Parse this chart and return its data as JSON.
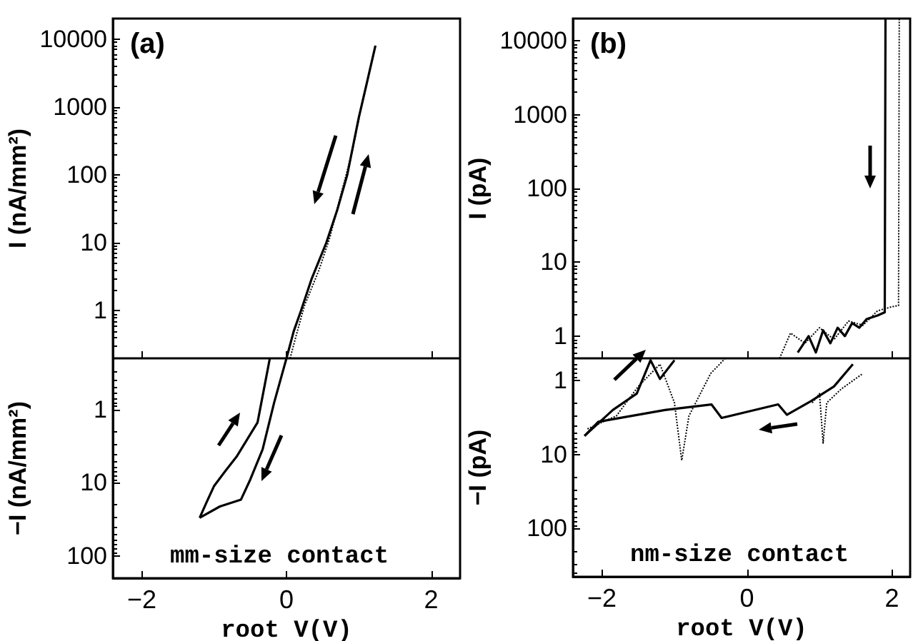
{
  "chart_data": [
    {
      "type": "line",
      "ylabel": "I (nA/mm²)",
      "annotations": [
        "(a)"
      ],
      "xlim": [
        -2.4,
        2.4
      ],
      "xticks": [
        -2,
        0,
        2
      ],
      "ylim": [
        0.2,
        20000
      ],
      "yticks": [
        1,
        10,
        100,
        1000,
        10000
      ],
      "log": "y",
      "tick_labels": "y",
      "grid": false,
      "marker": "none",
      "series": [
        {
          "color": "#000000",
          "line_style": "solid",
          "x": [
            0.0,
            0.1,
            0.2,
            0.35,
            0.55,
            0.7,
            0.84,
            1.0,
            1.1,
            1.23
          ],
          "values": [
            0.2,
            0.5,
            1,
            3,
            10,
            30,
            100,
            700,
            2000,
            8000
          ]
        },
        {
          "color": "#000000",
          "line_style": "dotted",
          "x": [
            0.05,
            0.15,
            0.25,
            0.45,
            0.6,
            0.75,
            0.9,
            1.05,
            1.23
          ],
          "values": [
            0.2,
            0.5,
            1.2,
            4,
            12,
            50,
            200,
            1200,
            8000
          ]
        }
      ]
    },
    {
      "type": "line",
      "ylabel": "−I (nA/mm²)",
      "xlabel": "root V(V)",
      "annotations": [
        "mm-size contact"
      ],
      "xlim": [
        -2.4,
        2.4
      ],
      "xticks": [
        -2,
        0,
        2
      ],
      "ylim": [
        200,
        0.2
      ],
      "yticks": [
        1,
        10,
        100
      ],
      "log": "y",
      "grid": false,
      "marker": "none",
      "series": [
        {
          "color": "#000000",
          "line_style": "solid",
          "x": [
            -0.23,
            -0.4,
            -0.69,
            -0.85,
            -1.0,
            -1.1,
            -1.2
          ],
          "values": [
            0.2,
            1.5,
            4.4,
            7,
            11,
            18,
            30
          ]
        },
        {
          "color": "#000000",
          "line_style": "solid",
          "x": [
            0.0,
            -0.17,
            -0.33,
            -0.5,
            -0.63,
            -0.92,
            -1.2
          ],
          "values": [
            0.2,
            0.8,
            3.5,
            9,
            17,
            21,
            30
          ]
        }
      ]
    },
    {
      "type": "line",
      "ylabel": "I (pA)",
      "annotations": [
        "(b)"
      ],
      "xlim": [
        -2.4,
        2.25
      ],
      "xticks": [
        -2,
        0,
        2
      ],
      "ylim": [
        0.5,
        20000
      ],
      "yticks": [
        1,
        10,
        100,
        1000,
        10000
      ],
      "log": "y",
      "tick_labels": "y",
      "grid": false,
      "marker": "none",
      "series": [
        {
          "color": "#000000",
          "line_style": "solid",
          "x": [
            0.7,
            0.85,
            0.95,
            1.05,
            1.15,
            1.25,
            1.35,
            1.45,
            1.55,
            1.65,
            1.8,
            1.9,
            1.91
          ],
          "values": [
            0.6,
            1.0,
            0.6,
            1.2,
            0.8,
            1.3,
            1.0,
            1.5,
            1.3,
            1.7,
            1.9,
            2.1,
            20000
          ]
        },
        {
          "color": "#000000",
          "line_style": "dotted",
          "x": [
            0.45,
            0.6,
            0.8,
            1.0,
            1.2,
            1.4,
            1.6,
            1.8,
            2.0,
            2.09,
            2.1
          ],
          "values": [
            0.5,
            1.1,
            0.8,
            1.3,
            0.9,
            1.6,
            1.4,
            2.2,
            2.5,
            2.6,
            20000
          ]
        }
      ]
    },
    {
      "type": "line",
      "ylabel": "−I (pA)",
      "xlabel": "root V(V)",
      "annotations": [
        "nm-size contact"
      ],
      "xlim": [
        -2.4,
        2.25
      ],
      "xticks": [
        -2,
        0,
        2
      ],
      "ylim": [
        450,
        0.5
      ],
      "yticks": [
        1,
        10,
        100
      ],
      "log": "y",
      "grid": false,
      "marker": "none",
      "series": [
        {
          "color": "#000000",
          "line_style": "solid",
          "x": [
            -2.24,
            -2.05,
            -1.13,
            -0.49,
            -0.35,
            0.43,
            0.55,
            0.88,
            1.2,
            1.46
          ],
          "values": [
            5.6,
            3.6,
            2.5,
            2.1,
            3.2,
            2.1,
            2.9,
            1.9,
            1.2,
            0.6
          ]
        },
        {
          "color": "#000000",
          "line_style": "solid",
          "x": [
            -2.24,
            -1.85,
            -1.52,
            -1.33,
            -1.2,
            -1.0
          ],
          "values": [
            5.6,
            2.5,
            1.5,
            0.53,
            0.95,
            0.53
          ]
        },
        {
          "color": "#000000",
          "line_style": "dotted",
          "x": [
            -2.2,
            -1.8,
            -1.5,
            -1.2,
            -1.0,
            -0.9,
            -0.8,
            -0.5,
            -0.3
          ],
          "values": [
            4.5,
            3,
            1.2,
            0.6,
            2,
            12,
            3,
            0.8,
            0.5
          ]
        },
        {
          "color": "#000000",
          "line_style": "dotted",
          "x": [
            0.9,
            1.0,
            1.05,
            1.1,
            1.3,
            1.6
          ],
          "values": [
            2,
            1.5,
            7,
            2,
            1.3,
            0.8
          ]
        }
      ]
    }
  ]
}
